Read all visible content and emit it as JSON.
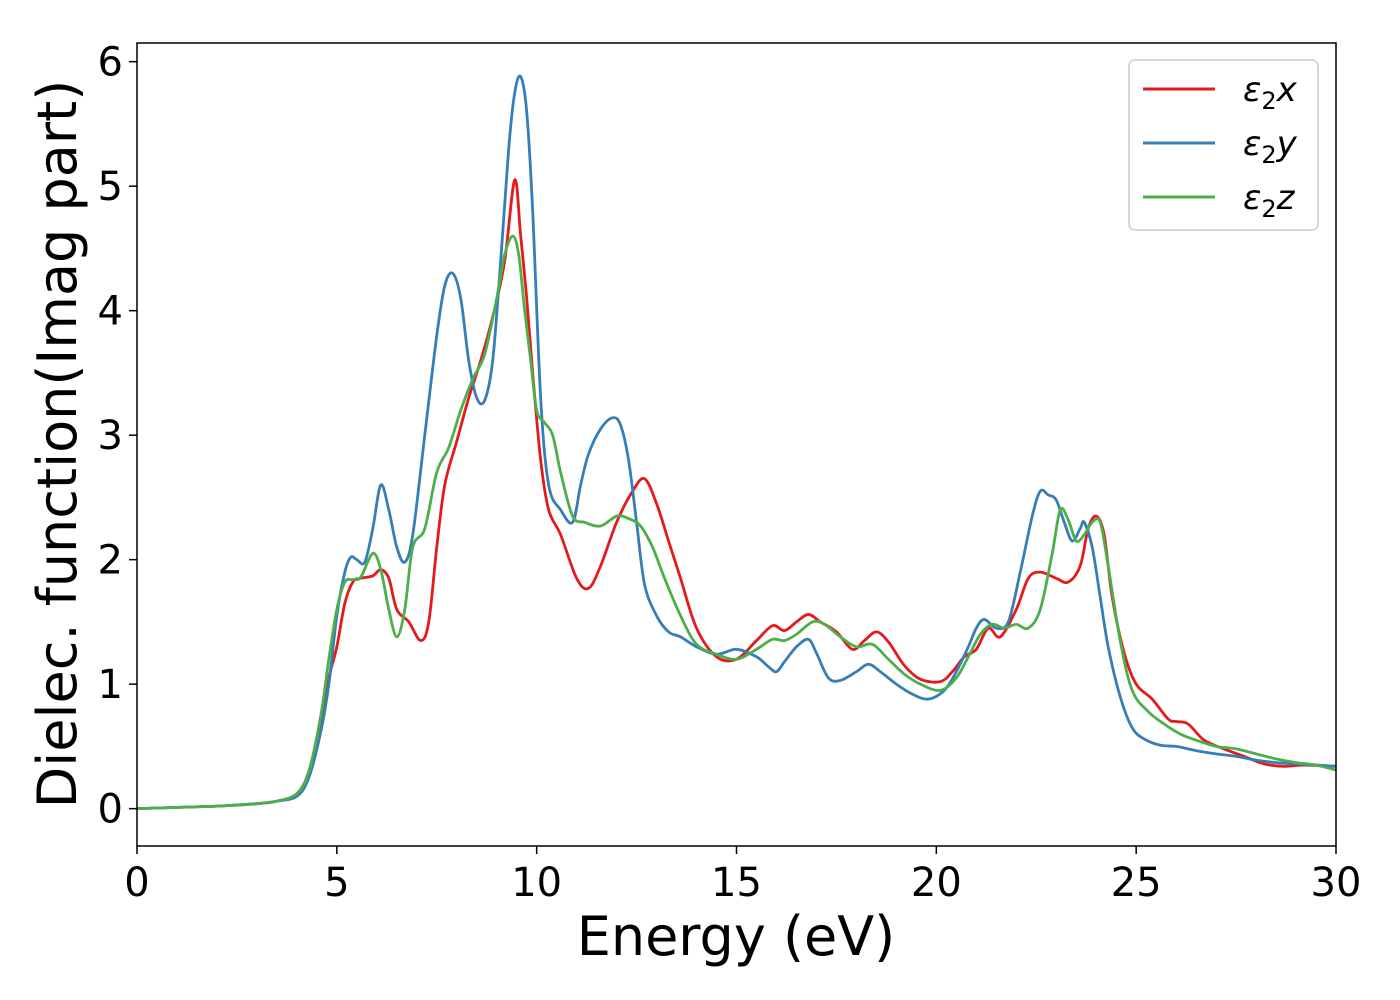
{
  "chart_data": {
    "type": "line",
    "title": "",
    "xlabel": "Energy (eV)",
    "ylabel": "Dielec. function(Imag part)",
    "xlim": [
      0,
      30
    ],
    "ylim": [
      -0.3,
      6.15
    ],
    "xticks": [
      0,
      5,
      10,
      15,
      20,
      25,
      30
    ],
    "yticks": [
      0,
      1,
      2,
      3,
      4,
      5,
      6
    ],
    "grid": false,
    "legend_position": "top-right",
    "series": [
      {
        "name": "ε2x",
        "legend": {
          "base": "ε",
          "sub": "2",
          "suffix": "x"
        },
        "color": "#e41a1c",
        "x": [
          0,
          1,
          2,
          3,
          3.5,
          4,
          4.3,
          4.6,
          4.8,
          5.0,
          5.2,
          5.4,
          5.6,
          5.9,
          6.1,
          6.3,
          6.5,
          6.8,
          7.1,
          7.3,
          7.5,
          7.7,
          8.0,
          8.3,
          8.6,
          8.9,
          9.2,
          9.45,
          9.6,
          9.75,
          9.9,
          10.1,
          10.3,
          10.6,
          11.0,
          11.3,
          11.6,
          12.0,
          12.4,
          12.7,
          13.0,
          13.3,
          13.6,
          14.0,
          14.5,
          15.0,
          15.5,
          15.9,
          16.2,
          16.5,
          16.8,
          17.1,
          17.5,
          17.9,
          18.2,
          18.5,
          18.8,
          19.2,
          19.6,
          20.1,
          20.4,
          20.7,
          21.0,
          21.3,
          21.6,
          22.0,
          22.3,
          22.6,
          23.0,
          23.3,
          23.6,
          23.8,
          24.0,
          24.2,
          24.4,
          24.7,
          25.0,
          25.4,
          25.8,
          26.0,
          26.3,
          26.7,
          27.2,
          27.7,
          28.2,
          28.7,
          29.2,
          30.0
        ],
        "y": [
          0.0,
          0.01,
          0.02,
          0.04,
          0.06,
          0.12,
          0.3,
          0.7,
          1.05,
          1.3,
          1.65,
          1.82,
          1.85,
          1.87,
          1.92,
          1.85,
          1.6,
          1.5,
          1.35,
          1.5,
          2.1,
          2.6,
          2.95,
          3.3,
          3.6,
          3.95,
          4.4,
          5.05,
          4.6,
          4.1,
          3.5,
          2.8,
          2.4,
          2.2,
          1.85,
          1.77,
          1.95,
          2.3,
          2.55,
          2.65,
          2.45,
          2.15,
          1.85,
          1.45,
          1.22,
          1.2,
          1.35,
          1.47,
          1.43,
          1.5,
          1.56,
          1.5,
          1.42,
          1.28,
          1.35,
          1.42,
          1.34,
          1.15,
          1.04,
          1.02,
          1.1,
          1.22,
          1.28,
          1.45,
          1.38,
          1.6,
          1.85,
          1.9,
          1.85,
          1.82,
          1.95,
          2.25,
          2.35,
          2.2,
          1.7,
          1.25,
          1.0,
          0.88,
          0.72,
          0.7,
          0.68,
          0.55,
          0.48,
          0.42,
          0.36,
          0.34,
          0.35,
          0.34
        ]
      },
      {
        "name": "ε2y",
        "legend": {
          "base": "ε",
          "sub": "2",
          "suffix": "y"
        },
        "color": "#377eb8",
        "x": [
          0,
          1,
          2,
          3,
          3.5,
          4,
          4.3,
          4.6,
          4.8,
          5.0,
          5.2,
          5.35,
          5.5,
          5.7,
          5.9,
          6.1,
          6.3,
          6.5,
          6.7,
          6.9,
          7.2,
          7.5,
          7.7,
          7.9,
          8.1,
          8.3,
          8.5,
          8.7,
          8.9,
          9.1,
          9.3,
          9.45,
          9.6,
          9.75,
          9.9,
          10.1,
          10.3,
          10.6,
          10.9,
          11.1,
          11.3,
          11.6,
          11.9,
          12.1,
          12.3,
          12.5,
          12.7,
          13.0,
          13.3,
          13.6,
          14.0,
          14.5,
          15.0,
          15.5,
          15.8,
          16.0,
          16.2,
          16.5,
          16.8,
          17.0,
          17.3,
          17.6,
          18.0,
          18.3,
          18.6,
          19.0,
          19.4,
          19.8,
          20.2,
          20.5,
          20.8,
          21.0,
          21.2,
          21.5,
          21.8,
          22.1,
          22.4,
          22.6,
          22.8,
          23.0,
          23.2,
          23.4,
          23.6,
          23.7,
          23.9,
          24.1,
          24.3,
          24.6,
          24.9,
          25.2,
          25.6,
          26.0,
          26.3,
          26.6,
          27.0,
          27.5,
          28.0,
          28.5,
          29.0,
          29.5,
          30.0
        ],
        "y": [
          0.0,
          0.01,
          0.02,
          0.04,
          0.06,
          0.1,
          0.25,
          0.62,
          1.0,
          1.55,
          1.9,
          2.02,
          2.0,
          1.98,
          2.25,
          2.6,
          2.4,
          2.1,
          1.98,
          2.2,
          3.0,
          3.8,
          4.2,
          4.3,
          4.1,
          3.6,
          3.3,
          3.28,
          3.6,
          4.4,
          5.3,
          5.75,
          5.88,
          5.6,
          4.8,
          3.3,
          2.6,
          2.4,
          2.3,
          2.6,
          2.85,
          3.05,
          3.14,
          3.08,
          2.8,
          2.3,
          1.8,
          1.55,
          1.42,
          1.38,
          1.3,
          1.24,
          1.28,
          1.22,
          1.14,
          1.1,
          1.18,
          1.3,
          1.36,
          1.25,
          1.05,
          1.03,
          1.1,
          1.16,
          1.1,
          1.0,
          0.92,
          0.88,
          0.95,
          1.1,
          1.3,
          1.45,
          1.52,
          1.45,
          1.5,
          1.9,
          2.35,
          2.55,
          2.52,
          2.48,
          2.3,
          2.15,
          2.25,
          2.3,
          2.1,
          1.7,
          1.3,
          0.9,
          0.65,
          0.56,
          0.51,
          0.5,
          0.48,
          0.46,
          0.44,
          0.42,
          0.39,
          0.37,
          0.36,
          0.35,
          0.34
        ]
      },
      {
        "name": "ε2z",
        "legend": {
          "base": "ε",
          "sub": "2",
          "suffix": "z"
        },
        "color": "#4daf4a",
        "x": [
          0,
          1,
          2,
          3,
          3.5,
          4,
          4.3,
          4.6,
          4.8,
          5.0,
          5.2,
          5.4,
          5.6,
          5.9,
          6.1,
          6.3,
          6.5,
          6.7,
          6.9,
          7.2,
          7.5,
          7.8,
          8.1,
          8.4,
          8.7,
          9.0,
          9.2,
          9.4,
          9.55,
          9.7,
          9.85,
          10.0,
          10.2,
          10.4,
          10.6,
          10.9,
          11.2,
          11.6,
          12.0,
          12.3,
          12.6,
          12.9,
          13.2,
          13.6,
          14.0,
          14.5,
          15.0,
          15.5,
          15.9,
          16.2,
          16.5,
          16.9,
          17.2,
          17.6,
          18.0,
          18.4,
          18.8,
          19.2,
          19.6,
          20.1,
          20.5,
          20.8,
          21.1,
          21.4,
          21.7,
          22.0,
          22.3,
          22.6,
          22.9,
          23.1,
          23.3,
          23.5,
          23.7,
          23.9,
          24.1,
          24.3,
          24.6,
          24.9,
          25.3,
          25.7,
          26.1,
          26.5,
          27.0,
          27.5,
          28.0,
          28.5,
          29.0,
          29.5,
          30.0
        ],
        "y": [
          0.0,
          0.01,
          0.02,
          0.04,
          0.06,
          0.12,
          0.3,
          0.75,
          1.2,
          1.6,
          1.82,
          1.84,
          1.86,
          2.05,
          1.92,
          1.6,
          1.38,
          1.6,
          2.1,
          2.25,
          2.7,
          2.9,
          3.2,
          3.45,
          3.65,
          4.1,
          4.45,
          4.6,
          4.45,
          4.0,
          3.6,
          3.2,
          3.1,
          3.0,
          2.7,
          2.35,
          2.3,
          2.27,
          2.35,
          2.33,
          2.27,
          2.1,
          1.85,
          1.55,
          1.32,
          1.24,
          1.2,
          1.28,
          1.36,
          1.35,
          1.4,
          1.5,
          1.48,
          1.38,
          1.3,
          1.32,
          1.2,
          1.08,
          1.0,
          0.95,
          1.05,
          1.22,
          1.4,
          1.48,
          1.45,
          1.48,
          1.45,
          1.6,
          2.05,
          2.4,
          2.32,
          2.15,
          2.2,
          2.3,
          2.3,
          1.95,
          1.35,
          0.95,
          0.78,
          0.68,
          0.6,
          0.55,
          0.5,
          0.48,
          0.44,
          0.4,
          0.37,
          0.35,
          0.31
        ]
      }
    ]
  }
}
